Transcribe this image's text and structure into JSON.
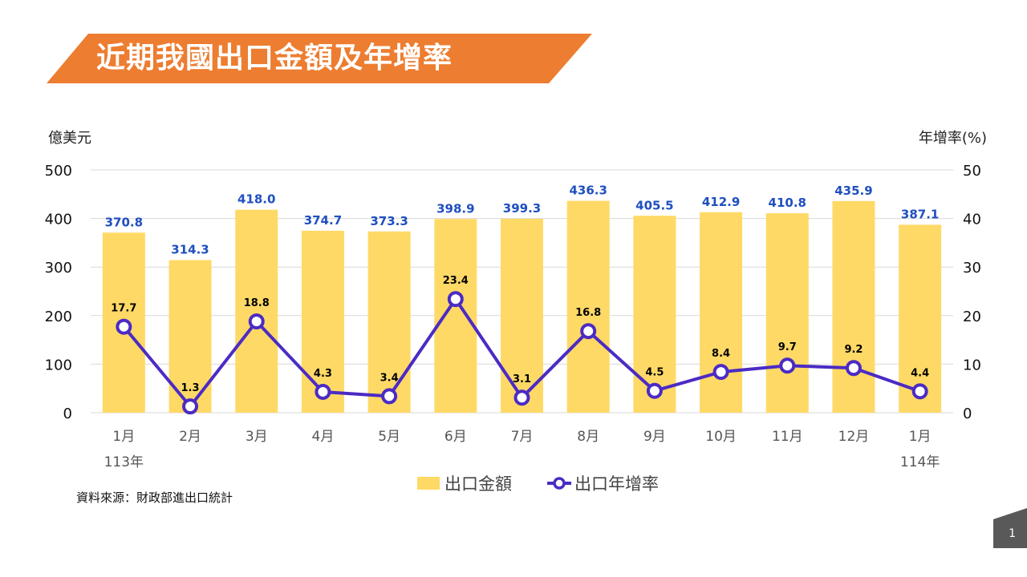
{
  "title": "近期我國出口金額及年增率",
  "axis_units": {
    "left": "億美元",
    "right": "年增率(%)"
  },
  "source": "資料來源：財政部進出口統計",
  "page_number": "1",
  "colors": {
    "banner": "#ED7D31",
    "bar": "#FFD966",
    "line": "#4B2BC4",
    "bar_label": "#1F4FBF"
  },
  "chart_data": {
    "type": "bar+line",
    "categories": [
      "1月",
      "2月",
      "3月",
      "4月",
      "5月",
      "6月",
      "7月",
      "8月",
      "9月",
      "10月",
      "11月",
      "12月",
      "1月"
    ],
    "category_sublabels": [
      "113年",
      "",
      "",
      "",
      "",
      "",
      "",
      "",
      "",
      "",
      "",
      "",
      "114年"
    ],
    "series": [
      {
        "name": "出口金額",
        "type": "bar",
        "axis": "left",
        "values": [
          370.8,
          314.3,
          418.0,
          374.7,
          373.3,
          398.9,
          399.3,
          436.3,
          405.5,
          412.9,
          410.8,
          435.9,
          387.1
        ],
        "labels": [
          "370.8",
          "314.3",
          "418.0",
          "374.7",
          "373.3",
          "398.9",
          "399.3",
          "436.3",
          "405.5",
          "412.9",
          "410.8",
          "435.9",
          "387.1"
        ]
      },
      {
        "name": "出口年增率",
        "type": "line",
        "axis": "right",
        "values": [
          17.7,
          1.3,
          18.8,
          4.3,
          3.4,
          23.4,
          3.1,
          16.8,
          4.5,
          8.4,
          9.7,
          9.2,
          4.4
        ],
        "labels": [
          "17.7",
          "1.3",
          "18.8",
          "4.3",
          "3.4",
          "23.4",
          "3.1",
          "16.8",
          "4.5",
          "8.4",
          "9.7",
          "9.2",
          "4.4"
        ]
      }
    ],
    "left_axis": {
      "min": 0,
      "max": 500,
      "ticks": [
        "0",
        "100",
        "200",
        "300",
        "400",
        "500"
      ]
    },
    "right_axis": {
      "min": 0,
      "max": 50,
      "ticks": [
        "0",
        "10",
        "20",
        "30",
        "40",
        "50"
      ]
    },
    "grid": true,
    "legend": "bottom"
  }
}
